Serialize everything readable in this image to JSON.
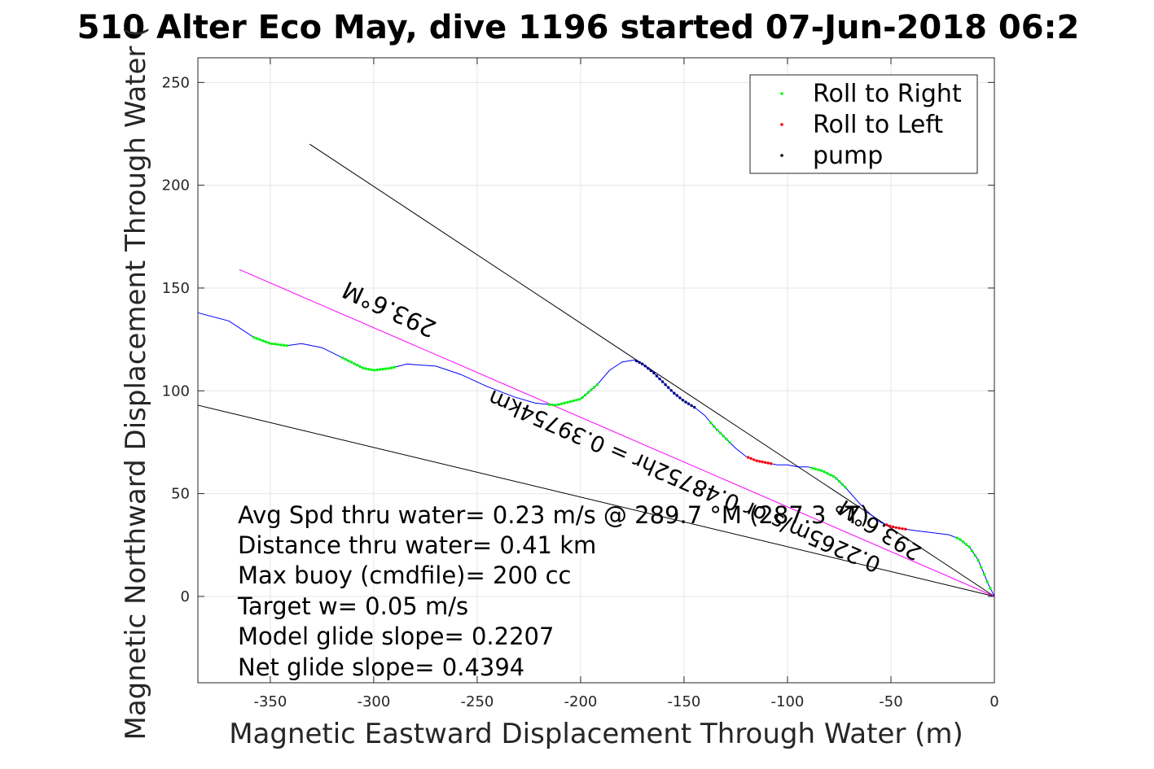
{
  "chart_data": {
    "type": "line",
    "title": "510 Alter Eco May, dive 1196 started 07-Jun-2018 06:2",
    "xlabel": "Magnetic Eastward Displacement Through Water (m)",
    "ylabel": "Magnetic Northward Displacement Through Water (",
    "xlim": [
      -385,
      0
    ],
    "ylim": [
      -42,
      262
    ],
    "xticks": [
      -350,
      -300,
      -250,
      -200,
      -150,
      -100,
      -50,
      0
    ],
    "xtick_labels": [
      "-350",
      "-300",
      "-250",
      "-200",
      "-150",
      "-100",
      "-50",
      "0"
    ],
    "yticks": [
      0,
      50,
      100,
      150,
      200,
      250
    ],
    "ytick_labels": [
      "0",
      "50",
      "100",
      "150",
      "200",
      "250"
    ],
    "grid": true,
    "legend_position": "top-right",
    "legend": [
      {
        "label": "Roll to Right",
        "color": "#00ff00"
      },
      {
        "label": "Roll to Left",
        "color": "#ff0000"
      },
      {
        "label": "pump",
        "color": "#000000"
      }
    ],
    "track": {
      "color": "#0000ff",
      "points": [
        [
          -385,
          138
        ],
        [
          -370,
          134
        ],
        [
          -358,
          126
        ],
        [
          -350,
          123
        ],
        [
          -342,
          122
        ],
        [
          -335,
          123
        ],
        [
          -325,
          121
        ],
        [
          -315,
          116
        ],
        [
          -305,
          111
        ],
        [
          -300,
          110
        ],
        [
          -292,
          111
        ],
        [
          -284,
          113
        ],
        [
          -270,
          112
        ],
        [
          -258,
          108
        ],
        [
          -245,
          102
        ],
        [
          -232,
          97
        ],
        [
          -222,
          94
        ],
        [
          -212,
          93
        ],
        [
          -200,
          96
        ],
        [
          -192,
          103
        ],
        [
          -186,
          110
        ],
        [
          -180,
          114
        ],
        [
          -174,
          115
        ],
        [
          -170,
          113
        ],
        [
          -165,
          109
        ],
        [
          -160,
          104
        ],
        [
          -155,
          99
        ],
        [
          -150,
          95
        ],
        [
          -145,
          92
        ],
        [
          -140,
          88
        ],
        [
          -135,
          82
        ],
        [
          -130,
          77
        ],
        [
          -125,
          72
        ],
        [
          -120,
          68
        ],
        [
          -115,
          66
        ],
        [
          -110,
          65
        ],
        [
          -105,
          64
        ],
        [
          -100,
          64
        ],
        [
          -95,
          63
        ],
        [
          -90,
          63
        ],
        [
          -83,
          61
        ],
        [
          -77,
          58
        ],
        [
          -72,
          53
        ],
        [
          -65,
          45
        ],
        [
          -60,
          40
        ],
        [
          -55,
          36
        ],
        [
          -50,
          34
        ],
        [
          -45,
          33
        ],
        [
          -38,
          32
        ],
        [
          -30,
          31
        ],
        [
          -22,
          30
        ],
        [
          -17,
          28
        ],
        [
          -12,
          24
        ],
        [
          -8,
          18
        ],
        [
          -5,
          11
        ],
        [
          -3,
          6
        ],
        [
          -1,
          2
        ],
        [
          0,
          0
        ]
      ]
    },
    "dot_segments": [
      {
        "kind": "Roll to Right",
        "color": "#00ff00",
        "from_x": -358,
        "to_x": -342
      },
      {
        "kind": "Roll to Right",
        "color": "#00ff00",
        "from_x": -315,
        "to_x": -290
      },
      {
        "kind": "Roll to Right",
        "color": "#00ff00",
        "from_x": -215,
        "to_x": -192
      },
      {
        "kind": "pump",
        "color": "#000080",
        "from_x": -173,
        "to_x": -145
      },
      {
        "kind": "Roll to Right",
        "color": "#00ff00",
        "from_x": -137,
        "to_x": -128
      },
      {
        "kind": "Roll to Left",
        "color": "#ff0000",
        "from_x": -119,
        "to_x": -108
      },
      {
        "kind": "Roll to Right",
        "color": "#00ff00",
        "from_x": -88,
        "to_x": -72
      },
      {
        "kind": "Roll to Left",
        "color": "#ff0000",
        "from_x": -52,
        "to_x": -43
      },
      {
        "kind": "Roll to Right",
        "color": "#00ff00",
        "from_x": -18,
        "to_x": -2
      }
    ],
    "reference_lines": [
      {
        "color": "#000000",
        "from": [
          -331,
          220
        ],
        "to": [
          0,
          0
        ]
      },
      {
        "color": "#000000",
        "from": [
          -385,
          93
        ],
        "to": [
          0,
          0
        ]
      },
      {
        "color": "#ff00ff",
        "from": [
          -365,
          159
        ],
        "to": [
          0,
          0
        ]
      }
    ],
    "annotations": {
      "heading_upper": "293.6°M",
      "rate_text": "0.2265m/s or 0.48752hr = 0.39754km",
      "heading_lower": "293.6°M"
    },
    "stats": [
      "Avg Spd thru water=  0.23 m/s @ 289.7 °M (287.3 °T)",
      "Distance thru water=  0.41 km",
      "Max buoy (cmdfile)= 200 cc",
      "Target w= 0.05 m/s",
      "Model glide slope= 0.2207",
      "Net glide slope= 0.4394"
    ]
  }
}
